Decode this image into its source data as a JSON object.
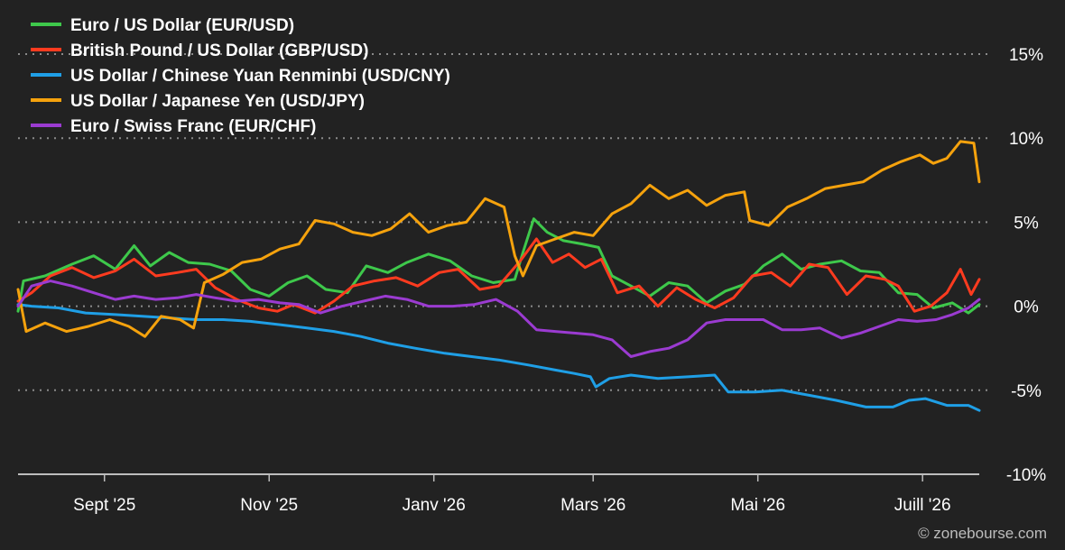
{
  "chart_data": {
    "type": "line",
    "y_unit": "%",
    "ylim": [
      -10,
      15
    ],
    "ytick_labels": [
      "15%",
      "10%",
      "5%",
      "0%",
      "-5%",
      "-10%"
    ],
    "ytick_values": [
      15,
      10,
      5,
      0,
      -5,
      -10
    ],
    "x_range": [
      "2025-07-31",
      "2026-07-22"
    ],
    "xtick_labels": [
      {
        "label": "Sept '25",
        "date": "2025-09-01"
      },
      {
        "label": "Nov '25",
        "date": "2025-11-01"
      },
      {
        "label": "Janv '26",
        "date": "2026-01-01"
      },
      {
        "label": "Mars '26",
        "date": "2026-03-01"
      },
      {
        "label": "Mai '26",
        "date": "2026-05-01"
      },
      {
        "label": "Juill '26",
        "date": "2026-07-01"
      }
    ],
    "grid": "horizontal dotted",
    "legend_position": "top-left",
    "series": [
      {
        "name": "Euro / US Dollar (EUR/USD)",
        "color": "#3ec84b",
        "points": [
          [
            "2025-07-31",
            -0.3
          ],
          [
            "2025-08-02",
            1.5
          ],
          [
            "2025-08-10",
            1.8
          ],
          [
            "2025-08-20",
            2.5
          ],
          [
            "2025-08-28",
            3.0
          ],
          [
            "2025-09-05",
            2.2
          ],
          [
            "2025-09-12",
            3.6
          ],
          [
            "2025-09-18",
            2.4
          ],
          [
            "2025-09-25",
            3.2
          ],
          [
            "2025-10-02",
            2.6
          ],
          [
            "2025-10-10",
            2.5
          ],
          [
            "2025-10-18",
            2.1
          ],
          [
            "2025-10-25",
            1.0
          ],
          [
            "2025-11-01",
            0.6
          ],
          [
            "2025-11-08",
            1.4
          ],
          [
            "2025-11-15",
            1.8
          ],
          [
            "2025-11-22",
            1.0
          ],
          [
            "2025-11-30",
            0.8
          ],
          [
            "2025-12-07",
            2.4
          ],
          [
            "2025-12-15",
            2.0
          ],
          [
            "2025-12-22",
            2.6
          ],
          [
            "2025-12-30",
            3.1
          ],
          [
            "2026-01-07",
            2.7
          ],
          [
            "2026-01-15",
            1.8
          ],
          [
            "2026-01-23",
            1.4
          ],
          [
            "2026-01-31",
            1.6
          ],
          [
            "2026-02-03",
            3.2
          ],
          [
            "2026-02-07",
            5.2
          ],
          [
            "2026-02-12",
            4.4
          ],
          [
            "2026-02-18",
            3.9
          ],
          [
            "2026-02-25",
            3.7
          ],
          [
            "2026-03-03",
            3.5
          ],
          [
            "2026-03-08",
            1.8
          ],
          [
            "2026-03-15",
            1.2
          ],
          [
            "2026-03-22",
            0.6
          ],
          [
            "2026-03-29",
            1.4
          ],
          [
            "2026-04-05",
            1.2
          ],
          [
            "2026-04-12",
            0.2
          ],
          [
            "2026-04-19",
            0.9
          ],
          [
            "2026-04-26",
            1.3
          ],
          [
            "2026-05-03",
            2.4
          ],
          [
            "2026-05-10",
            3.1
          ],
          [
            "2026-05-17",
            2.2
          ],
          [
            "2026-05-24",
            2.5
          ],
          [
            "2026-06-01",
            2.7
          ],
          [
            "2026-06-08",
            2.1
          ],
          [
            "2026-06-15",
            2.0
          ],
          [
            "2026-06-22",
            0.8
          ],
          [
            "2026-06-29",
            0.7
          ],
          [
            "2026-07-05",
            -0.1
          ],
          [
            "2026-07-12",
            0.2
          ],
          [
            "2026-07-18",
            -0.4
          ],
          [
            "2026-07-22",
            0.1
          ]
        ]
      },
      {
        "name": "British Pound / US Dollar (GBP/USD)",
        "color": "#ff3b1f",
        "points": [
          [
            "2025-07-31",
            0.3
          ],
          [
            "2025-08-05",
            0.8
          ],
          [
            "2025-08-12",
            1.8
          ],
          [
            "2025-08-20",
            2.3
          ],
          [
            "2025-08-28",
            1.7
          ],
          [
            "2025-09-05",
            2.1
          ],
          [
            "2025-09-12",
            2.8
          ],
          [
            "2025-09-20",
            1.8
          ],
          [
            "2025-09-28",
            2.0
          ],
          [
            "2025-10-05",
            2.2
          ],
          [
            "2025-10-12",
            1.1
          ],
          [
            "2025-10-20",
            0.4
          ],
          [
            "2025-10-28",
            -0.1
          ],
          [
            "2025-11-04",
            -0.3
          ],
          [
            "2025-11-10",
            0.1
          ],
          [
            "2025-11-18",
            -0.4
          ],
          [
            "2025-11-25",
            0.3
          ],
          [
            "2025-12-02",
            1.2
          ],
          [
            "2025-12-10",
            1.5
          ],
          [
            "2025-12-18",
            1.7
          ],
          [
            "2025-12-26",
            1.2
          ],
          [
            "2026-01-03",
            2.0
          ],
          [
            "2026-01-10",
            2.2
          ],
          [
            "2026-01-18",
            1.0
          ],
          [
            "2026-01-25",
            1.2
          ],
          [
            "2026-02-02",
            2.7
          ],
          [
            "2026-02-08",
            4.0
          ],
          [
            "2026-02-14",
            2.6
          ],
          [
            "2026-02-20",
            3.1
          ],
          [
            "2026-02-26",
            2.3
          ],
          [
            "2026-03-04",
            2.8
          ],
          [
            "2026-03-10",
            0.8
          ],
          [
            "2026-03-18",
            1.2
          ],
          [
            "2026-03-25",
            0.0
          ],
          [
            "2026-04-01",
            1.1
          ],
          [
            "2026-04-08",
            0.4
          ],
          [
            "2026-04-15",
            -0.1
          ],
          [
            "2026-04-22",
            0.5
          ],
          [
            "2026-04-29",
            1.8
          ],
          [
            "2026-05-06",
            2.0
          ],
          [
            "2026-05-13",
            1.2
          ],
          [
            "2026-05-20",
            2.5
          ],
          [
            "2026-05-27",
            2.3
          ],
          [
            "2026-06-03",
            0.7
          ],
          [
            "2026-06-10",
            1.8
          ],
          [
            "2026-06-17",
            1.6
          ],
          [
            "2026-06-22",
            1.2
          ],
          [
            "2026-06-28",
            -0.3
          ],
          [
            "2026-07-04",
            0.0
          ],
          [
            "2026-07-10",
            0.8
          ],
          [
            "2026-07-15",
            2.2
          ],
          [
            "2026-07-19",
            0.7
          ],
          [
            "2026-07-22",
            1.6
          ]
        ]
      },
      {
        "name": "US Dollar / Chinese Yuan Renminbi (USD/CNY)",
        "color": "#1f9fe6",
        "points": [
          [
            "2025-07-31",
            0.1
          ],
          [
            "2025-08-05",
            0.0
          ],
          [
            "2025-08-15",
            -0.1
          ],
          [
            "2025-08-25",
            -0.4
          ],
          [
            "2025-09-05",
            -0.5
          ],
          [
            "2025-09-15",
            -0.6
          ],
          [
            "2025-09-25",
            -0.7
          ],
          [
            "2025-10-05",
            -0.8
          ],
          [
            "2025-10-15",
            -0.8
          ],
          [
            "2025-10-25",
            -0.9
          ],
          [
            "2025-11-05",
            -1.1
          ],
          [
            "2025-11-15",
            -1.3
          ],
          [
            "2025-11-25",
            -1.5
          ],
          [
            "2025-12-05",
            -1.8
          ],
          [
            "2025-12-15",
            -2.2
          ],
          [
            "2025-12-25",
            -2.5
          ],
          [
            "2026-01-05",
            -2.8
          ],
          [
            "2026-01-15",
            -3.0
          ],
          [
            "2026-01-25",
            -3.2
          ],
          [
            "2026-02-05",
            -3.5
          ],
          [
            "2026-02-15",
            -3.8
          ],
          [
            "2026-02-22",
            -4.0
          ],
          [
            "2026-02-28",
            -4.2
          ],
          [
            "2026-03-02",
            -4.8
          ],
          [
            "2026-03-07",
            -4.3
          ],
          [
            "2026-03-15",
            -4.1
          ],
          [
            "2026-03-25",
            -4.3
          ],
          [
            "2026-04-05",
            -4.2
          ],
          [
            "2026-04-15",
            -4.1
          ],
          [
            "2026-04-20",
            -5.1
          ],
          [
            "2026-04-30",
            -5.1
          ],
          [
            "2026-05-10",
            -5.0
          ],
          [
            "2026-05-20",
            -5.3
          ],
          [
            "2026-05-30",
            -5.6
          ],
          [
            "2026-06-10",
            -6.0
          ],
          [
            "2026-06-20",
            -6.0
          ],
          [
            "2026-06-26",
            -5.6
          ],
          [
            "2026-07-02",
            -5.5
          ],
          [
            "2026-07-10",
            -5.9
          ],
          [
            "2026-07-18",
            -5.9
          ],
          [
            "2026-07-22",
            -6.2
          ]
        ]
      },
      {
        "name": "US Dollar / Japanese Yen (USD/JPY)",
        "color": "#f5a20d",
        "points": [
          [
            "2025-07-31",
            1.0
          ],
          [
            "2025-08-03",
            -1.5
          ],
          [
            "2025-08-10",
            -1.0
          ],
          [
            "2025-08-18",
            -1.5
          ],
          [
            "2025-08-26",
            -1.2
          ],
          [
            "2025-09-03",
            -0.8
          ],
          [
            "2025-09-10",
            -1.2
          ],
          [
            "2025-09-16",
            -1.8
          ],
          [
            "2025-09-22",
            -0.6
          ],
          [
            "2025-09-29",
            -0.8
          ],
          [
            "2025-10-04",
            -1.3
          ],
          [
            "2025-10-08",
            1.4
          ],
          [
            "2025-10-15",
            1.9
          ],
          [
            "2025-10-22",
            2.6
          ],
          [
            "2025-10-29",
            2.8
          ],
          [
            "2025-11-05",
            3.4
          ],
          [
            "2025-11-12",
            3.7
          ],
          [
            "2025-11-18",
            5.1
          ],
          [
            "2025-11-25",
            4.9
          ],
          [
            "2025-12-02",
            4.4
          ],
          [
            "2025-12-09",
            4.2
          ],
          [
            "2025-12-16",
            4.6
          ],
          [
            "2025-12-23",
            5.5
          ],
          [
            "2025-12-30",
            4.4
          ],
          [
            "2026-01-06",
            4.8
          ],
          [
            "2026-01-13",
            5.0
          ],
          [
            "2026-01-20",
            6.4
          ],
          [
            "2026-01-27",
            5.9
          ],
          [
            "2026-01-31",
            3.0
          ],
          [
            "2026-02-03",
            1.8
          ],
          [
            "2026-02-08",
            3.6
          ],
          [
            "2026-02-15",
            4.0
          ],
          [
            "2026-02-22",
            4.4
          ],
          [
            "2026-03-01",
            4.2
          ],
          [
            "2026-03-08",
            5.5
          ],
          [
            "2026-03-15",
            6.1
          ],
          [
            "2026-03-22",
            7.2
          ],
          [
            "2026-03-29",
            6.4
          ],
          [
            "2026-04-05",
            6.9
          ],
          [
            "2026-04-12",
            6.0
          ],
          [
            "2026-04-19",
            6.6
          ],
          [
            "2026-04-26",
            6.8
          ],
          [
            "2026-04-28",
            5.1
          ],
          [
            "2026-05-05",
            4.8
          ],
          [
            "2026-05-12",
            5.9
          ],
          [
            "2026-05-19",
            6.4
          ],
          [
            "2026-05-26",
            7.0
          ],
          [
            "2026-06-02",
            7.2
          ],
          [
            "2026-06-09",
            7.4
          ],
          [
            "2026-06-16",
            8.1
          ],
          [
            "2026-06-23",
            8.6
          ],
          [
            "2026-06-30",
            9.0
          ],
          [
            "2026-07-05",
            8.5
          ],
          [
            "2026-07-10",
            8.8
          ],
          [
            "2026-07-15",
            9.8
          ],
          [
            "2026-07-20",
            9.7
          ],
          [
            "2026-07-22",
            7.4
          ]
        ]
      },
      {
        "name": "Euro / Swiss Franc (EUR/CHF)",
        "color": "#9b3bd1",
        "points": [
          [
            "2025-07-31",
            0.0
          ],
          [
            "2025-08-05",
            1.2
          ],
          [
            "2025-08-12",
            1.5
          ],
          [
            "2025-08-20",
            1.2
          ],
          [
            "2025-08-28",
            0.8
          ],
          [
            "2025-09-05",
            0.4
          ],
          [
            "2025-09-12",
            0.6
          ],
          [
            "2025-09-20",
            0.4
          ],
          [
            "2025-09-28",
            0.5
          ],
          [
            "2025-10-05",
            0.7
          ],
          [
            "2025-10-12",
            0.5
          ],
          [
            "2025-10-20",
            0.3
          ],
          [
            "2025-10-28",
            0.4
          ],
          [
            "2025-11-05",
            0.2
          ],
          [
            "2025-11-12",
            0.1
          ],
          [
            "2025-11-20",
            -0.4
          ],
          [
            "2025-11-28",
            0.0
          ],
          [
            "2025-12-06",
            0.3
          ],
          [
            "2025-12-14",
            0.6
          ],
          [
            "2025-12-22",
            0.4
          ],
          [
            "2025-12-30",
            0.0
          ],
          [
            "2026-01-08",
            0.0
          ],
          [
            "2026-01-16",
            0.1
          ],
          [
            "2026-01-24",
            0.4
          ],
          [
            "2026-02-01",
            -0.3
          ],
          [
            "2026-02-08",
            -1.4
          ],
          [
            "2026-02-15",
            -1.5
          ],
          [
            "2026-02-22",
            -1.6
          ],
          [
            "2026-03-01",
            -1.7
          ],
          [
            "2026-03-08",
            -2.0
          ],
          [
            "2026-03-15",
            -3.0
          ],
          [
            "2026-03-22",
            -2.7
          ],
          [
            "2026-03-29",
            -2.5
          ],
          [
            "2026-04-05",
            -2.0
          ],
          [
            "2026-04-12",
            -1.0
          ],
          [
            "2026-04-19",
            -0.8
          ],
          [
            "2026-04-26",
            -0.8
          ],
          [
            "2026-05-03",
            -0.8
          ],
          [
            "2026-05-10",
            -1.4
          ],
          [
            "2026-05-17",
            -1.4
          ],
          [
            "2026-05-24",
            -1.3
          ],
          [
            "2026-06-01",
            -1.9
          ],
          [
            "2026-06-08",
            -1.6
          ],
          [
            "2026-06-15",
            -1.2
          ],
          [
            "2026-06-22",
            -0.8
          ],
          [
            "2026-06-29",
            -0.9
          ],
          [
            "2026-07-06",
            -0.8
          ],
          [
            "2026-07-12",
            -0.5
          ],
          [
            "2026-07-18",
            -0.1
          ],
          [
            "2026-07-22",
            0.4
          ]
        ]
      }
    ]
  },
  "copyright": "© zonebourse.com"
}
